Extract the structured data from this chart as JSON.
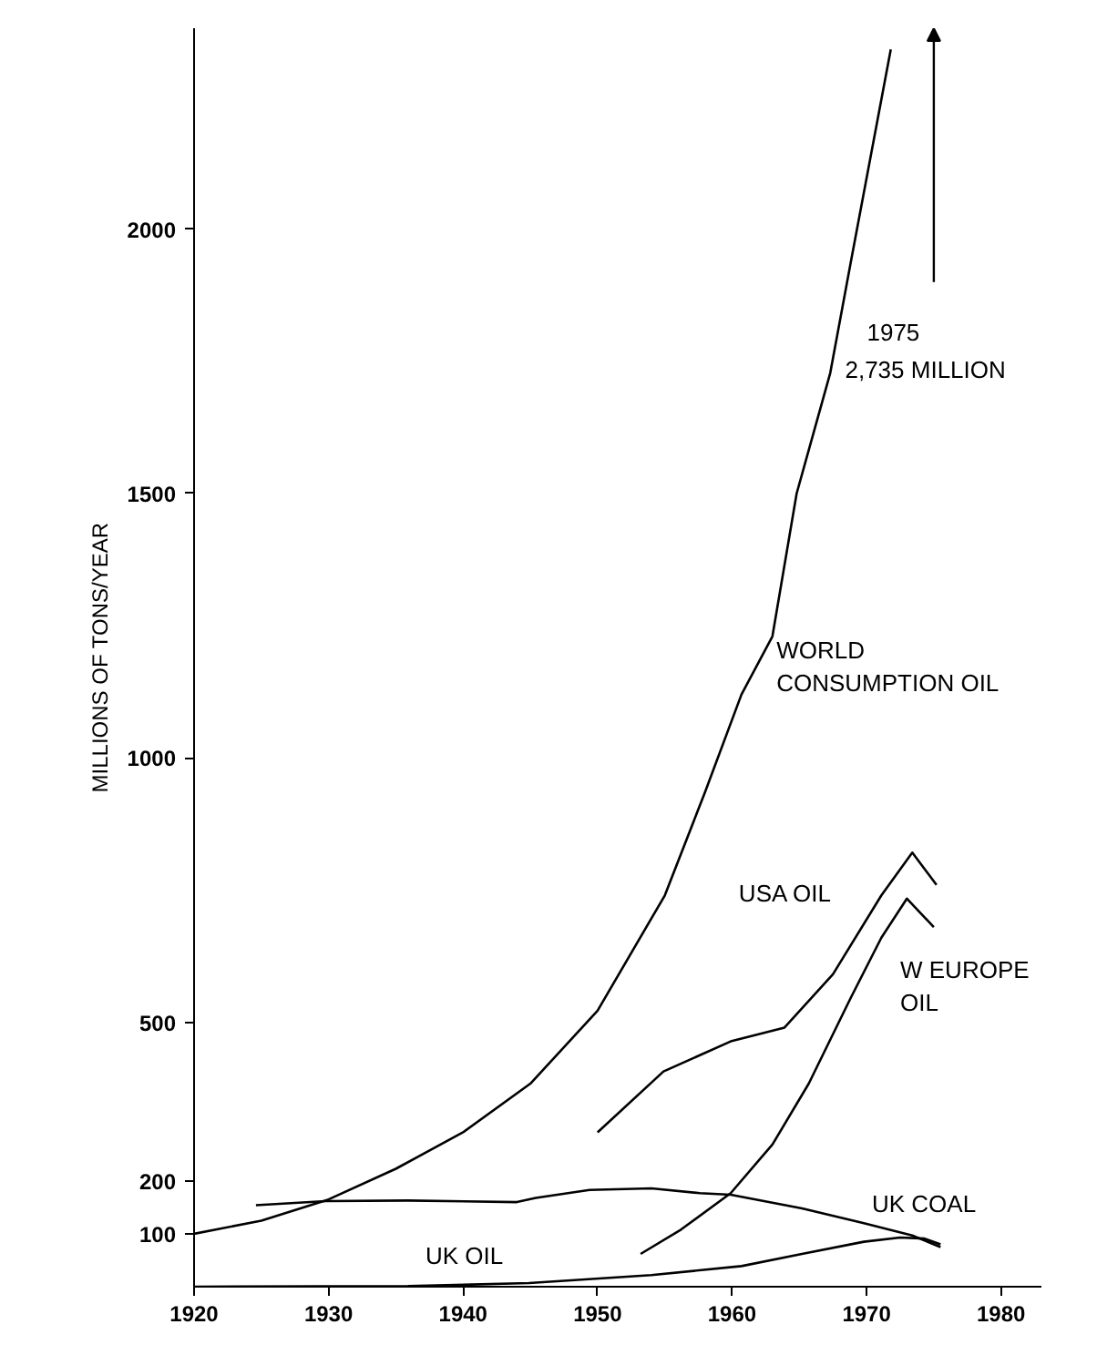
{
  "chart_data": {
    "type": "line",
    "xlabel": null,
    "ylabel": "MILLIONS OF TONS/YEAR",
    "xlim": [
      1920,
      1983
    ],
    "xticks": [
      1920,
      1930,
      1940,
      1950,
      1960,
      1970,
      1980
    ],
    "ylim": [
      0,
      2380
    ],
    "yticks": [
      100,
      200,
      500,
      1000,
      1500,
      2000
    ],
    "grid": false,
    "marker": "none",
    "line_style": "solid",
    "series": [
      {
        "name": "WORLD CONSUMPTION OIL",
        "color": "#000000",
        "x": [
          1920,
          1925,
          1930,
          1935,
          1940,
          1945,
          1950,
          1955,
          1958,
          1960.7,
          1963,
          1964.8,
          1967.3,
          1968.8,
          1971.8
        ],
        "values": [
          100,
          125,
          165,
          223,
          292,
          384,
          522,
          740,
          936,
          1120,
          1230,
          1500,
          1728,
          1934,
          2340
        ]
      },
      {
        "name": "USA OIL",
        "color": "#000000",
        "x": [
          1950,
          1954.9,
          1959.9,
          1963.9,
          1967.5,
          1971.1,
          1973.4,
          1975.2
        ],
        "values": [
          292,
          407,
          464,
          490,
          591,
          740,
          821,
          760
        ]
      },
      {
        "name": "W EUROPE OIL",
        "color": "#000000",
        "x": [
          1953.2,
          1956.2,
          1959.9,
          1963,
          1965.7,
          1968.8,
          1971.1,
          1973,
          1975
        ],
        "values": [
          62,
          108,
          177,
          269,
          384,
          545,
          660,
          734,
          680
        ]
      },
      {
        "name": "UK COAL",
        "color": "#000000",
        "x": [
          1924.6,
          1929.8,
          1935.9,
          1944,
          1945.4,
          1949.4,
          1954,
          1957.6,
          1959.9,
          1965.2,
          1969.8,
          1973.4,
          1975.5
        ],
        "values": [
          154,
          162,
          163,
          160,
          168,
          183,
          186,
          177,
          174,
          148,
          120,
          97,
          75
        ]
      },
      {
        "name": "UK OIL",
        "color": "#000000",
        "x": [
          1920,
          1935.9,
          1944.9,
          1954,
          1960.7,
          1965.2,
          1969.8,
          1972.5,
          1974.3,
          1975.5
        ],
        "values": [
          0,
          1,
          7,
          22,
          39,
          62,
          85,
          93,
          91,
          80
        ]
      }
    ],
    "annotations": [
      "1975",
      "2,735 MILLION"
    ]
  }
}
